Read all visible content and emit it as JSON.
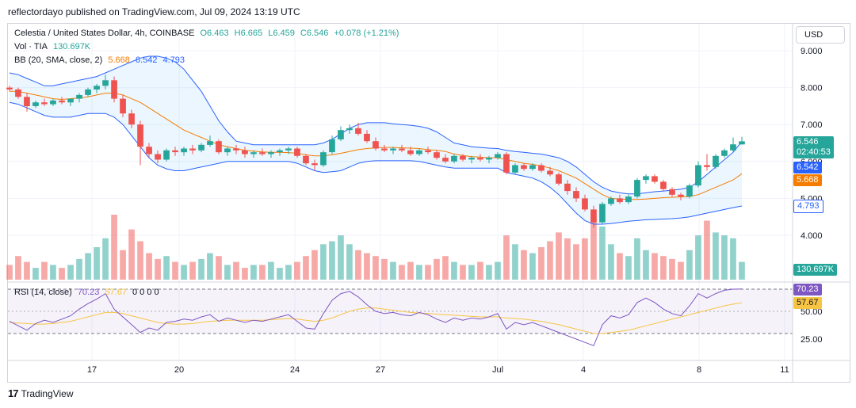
{
  "header": {
    "attribution": "reflectordayo published on TradingView.com, Jul 09, 2024 13:19 UTC"
  },
  "legend": {
    "symbol": "Celestia / United States Dollar, 4h, COINBASE",
    "open": "O6.463",
    "high": "H6.665",
    "low": "L6.459",
    "close": "C6.546",
    "change": "+0.078 (+1.21%)",
    "vol_label": "Vol · TIA",
    "vol_value": "130.697K",
    "bb_label": "BB (20, SMA, close, 2)",
    "bb_basis": "5.668",
    "bb_upper": "6.542",
    "bb_lower": "4.793",
    "rsi_label": "RSI (14, close)",
    "rsi_value": "70.23",
    "rsi_ma": "57.67",
    "rsi_extra": "0 0 0 0"
  },
  "currency_button": "USD",
  "badges": {
    "price": "6.546",
    "countdown": "02:40:53",
    "bb_upper": "6.542",
    "bb_basis": "5.668",
    "bb_lower": "4.793",
    "volume": "130.697K",
    "rsi": "70.23",
    "rsi_ma": "57.67"
  },
  "footer": {
    "logo_text": "TradingView",
    "logo_mark": "17"
  },
  "colors": {
    "up": "#26a69a",
    "down": "#ef5350",
    "bb_band": "#2962ff",
    "bb_basis": "#f57c00",
    "rsi_line": "#7e57c2",
    "rsi_ma": "#f7c543",
    "badge_blue": "#2962ff"
  },
  "chart_data": {
    "type": "candlestick",
    "price_axis": {
      "ticks": [
        "9.000",
        "8.000",
        "7.000",
        "6.000",
        "5.000",
        "4.000"
      ],
      "ylim": [
        3.7,
        9.2
      ]
    },
    "rsi_axis": {
      "ticks": [
        "70.23",
        "50.00",
        "25.00"
      ],
      "ylim": [
        15,
        80
      ],
      "bands": [
        70,
        30
      ]
    },
    "x_axis_labels": [
      "17",
      "20",
      "24",
      "27",
      "Jul",
      "4",
      "8",
      "11"
    ],
    "candles": [
      [
        8.0,
        8.05,
        7.9,
        7.95
      ],
      [
        7.95,
        8.0,
        7.7,
        7.75
      ],
      [
        7.75,
        7.85,
        7.35,
        7.5
      ],
      [
        7.5,
        7.65,
        7.45,
        7.6
      ],
      [
        7.6,
        7.7,
        7.5,
        7.55
      ],
      [
        7.55,
        7.7,
        7.5,
        7.65
      ],
      [
        7.65,
        7.75,
        7.55,
        7.6
      ],
      [
        7.6,
        7.7,
        7.5,
        7.7
      ],
      [
        7.7,
        7.85,
        7.6,
        7.8
      ],
      [
        7.8,
        8.0,
        7.75,
        7.95
      ],
      [
        7.95,
        8.1,
        7.85,
        8.05
      ],
      [
        8.05,
        8.35,
        7.95,
        8.2
      ],
      [
        8.2,
        8.3,
        7.6,
        7.7
      ],
      [
        7.7,
        7.8,
        7.2,
        7.3
      ],
      [
        7.3,
        7.4,
        6.9,
        7.0
      ],
      [
        7.0,
        7.1,
        5.9,
        6.4
      ],
      [
        6.4,
        6.5,
        6.1,
        6.2
      ],
      [
        6.2,
        6.3,
        5.95,
        6.05
      ],
      [
        6.05,
        6.35,
        6.0,
        6.3
      ],
      [
        6.3,
        6.4,
        6.15,
        6.25
      ],
      [
        6.25,
        6.4,
        6.15,
        6.35
      ],
      [
        6.35,
        6.45,
        6.2,
        6.3
      ],
      [
        6.3,
        6.5,
        6.25,
        6.45
      ],
      [
        6.45,
        6.7,
        6.4,
        6.55
      ],
      [
        6.55,
        6.6,
        6.2,
        6.25
      ],
      [
        6.25,
        6.4,
        6.15,
        6.35
      ],
      [
        6.35,
        6.45,
        6.2,
        6.3
      ],
      [
        6.3,
        6.4,
        6.1,
        6.2
      ],
      [
        6.2,
        6.3,
        6.1,
        6.25
      ],
      [
        6.25,
        6.35,
        6.15,
        6.2
      ],
      [
        6.2,
        6.3,
        6.1,
        6.25
      ],
      [
        6.25,
        6.35,
        6.15,
        6.3
      ],
      [
        6.3,
        6.4,
        6.2,
        6.35
      ],
      [
        6.35,
        6.4,
        6.1,
        6.15
      ],
      [
        6.15,
        6.2,
        5.9,
        5.95
      ],
      [
        5.95,
        6.05,
        5.75,
        5.9
      ],
      [
        5.9,
        6.3,
        5.85,
        6.25
      ],
      [
        6.25,
        6.7,
        6.2,
        6.6
      ],
      [
        6.6,
        6.95,
        6.55,
        6.85
      ],
      [
        6.85,
        7.0,
        6.75,
        6.9
      ],
      [
        6.9,
        7.05,
        6.7,
        6.75
      ],
      [
        6.75,
        6.85,
        6.5,
        6.55
      ],
      [
        6.55,
        6.65,
        6.3,
        6.35
      ],
      [
        6.35,
        6.45,
        6.25,
        6.3
      ],
      [
        6.3,
        6.4,
        6.2,
        6.35
      ],
      [
        6.35,
        6.45,
        6.25,
        6.3
      ],
      [
        6.3,
        6.4,
        6.15,
        6.2
      ],
      [
        6.2,
        6.35,
        6.15,
        6.3
      ],
      [
        6.3,
        6.4,
        6.2,
        6.25
      ],
      [
        6.25,
        6.3,
        6.05,
        6.1
      ],
      [
        6.1,
        6.2,
        5.95,
        6.0
      ],
      [
        6.0,
        6.2,
        5.95,
        6.15
      ],
      [
        6.15,
        6.2,
        6.0,
        6.05
      ],
      [
        6.05,
        6.15,
        5.95,
        6.1
      ],
      [
        6.1,
        6.2,
        6.0,
        6.05
      ],
      [
        6.05,
        6.15,
        5.95,
        6.1
      ],
      [
        6.1,
        6.25,
        6.05,
        6.2
      ],
      [
        6.2,
        6.25,
        5.65,
        5.7
      ],
      [
        5.7,
        5.95,
        5.65,
        5.9
      ],
      [
        5.9,
        5.95,
        5.75,
        5.8
      ],
      [
        5.8,
        5.95,
        5.75,
        5.9
      ],
      [
        5.9,
        5.95,
        5.7,
        5.75
      ],
      [
        5.75,
        5.85,
        5.6,
        5.65
      ],
      [
        5.65,
        5.7,
        5.35,
        5.4
      ],
      [
        5.4,
        5.5,
        5.1,
        5.2
      ],
      [
        5.2,
        5.3,
        4.9,
        5.0
      ],
      [
        5.0,
        5.1,
        4.65,
        4.7
      ],
      [
        4.7,
        4.8,
        4.2,
        4.35
      ],
      [
        4.35,
        4.9,
        4.3,
        4.85
      ],
      [
        4.85,
        5.05,
        4.8,
        5.0
      ],
      [
        5.0,
        5.1,
        4.85,
        4.9
      ],
      [
        4.9,
        5.1,
        4.85,
        5.05
      ],
      [
        5.05,
        5.55,
        5.0,
        5.5
      ],
      [
        5.5,
        5.65,
        5.4,
        5.6
      ],
      [
        5.6,
        5.65,
        5.4,
        5.45
      ],
      [
        5.45,
        5.5,
        5.2,
        5.25
      ],
      [
        5.25,
        5.3,
        5.05,
        5.1
      ],
      [
        5.1,
        5.15,
        4.95,
        5.05
      ],
      [
        5.05,
        5.4,
        5.0,
        5.35
      ],
      [
        5.35,
        6.0,
        5.3,
        5.9
      ],
      [
        5.9,
        6.2,
        5.75,
        5.85
      ],
      [
        5.85,
        6.2,
        5.8,
        6.15
      ],
      [
        6.15,
        6.35,
        6.1,
        6.3
      ],
      [
        6.3,
        6.65,
        6.25,
        6.463
      ],
      [
        6.463,
        6.665,
        6.459,
        6.546
      ]
    ],
    "volumes": [
      0.5,
      0.8,
      0.6,
      0.4,
      0.6,
      0.5,
      0.4,
      0.5,
      0.7,
      0.9,
      1.1,
      1.4,
      2.2,
      1.0,
      1.7,
      1.3,
      0.9,
      0.7,
      0.8,
      0.6,
      0.5,
      0.6,
      0.7,
      0.9,
      0.8,
      0.5,
      0.6,
      0.4,
      0.5,
      0.5,
      0.6,
      0.4,
      0.5,
      0.6,
      0.8,
      1.0,
      1.2,
      1.3,
      1.5,
      1.2,
      1.0,
      0.9,
      0.8,
      0.7,
      0.6,
      0.5,
      0.6,
      0.5,
      0.5,
      0.7,
      0.8,
      0.6,
      0.5,
      0.5,
      0.6,
      0.5,
      0.6,
      1.5,
      1.2,
      1.0,
      0.9,
      1.1,
      1.3,
      1.6,
      1.4,
      1.2,
      1.4,
      2.0,
      1.8,
      1.2,
      0.9,
      0.8,
      1.4,
      1.0,
      0.9,
      0.8,
      0.7,
      0.6,
      1.0,
      1.5,
      2.0,
      1.6,
      1.5,
      1.4,
      0.6
    ],
    "upper_band": [
      8.4,
      8.35,
      8.25,
      8.15,
      8.05,
      8.05,
      8.1,
      8.15,
      8.2,
      8.25,
      8.3,
      8.4,
      8.5,
      8.6,
      8.7,
      8.8,
      8.85,
      8.85,
      8.8,
      8.7,
      8.5,
      8.2,
      7.9,
      7.5,
      7.1,
      6.8,
      6.55,
      6.5,
      6.45,
      6.45,
      6.45,
      6.45,
      6.45,
      6.45,
      6.45,
      6.45,
      6.5,
      6.6,
      6.75,
      6.9,
      7.0,
      7.05,
      7.05,
      7.05,
      7.02,
      7.0,
      6.98,
      6.95,
      6.9,
      6.8,
      6.65,
      6.5,
      6.45,
      6.4,
      6.38,
      6.36,
      6.35,
      6.3,
      6.27,
      6.25,
      6.22,
      6.2,
      6.15,
      6.1,
      6.0,
      5.85,
      5.65,
      5.45,
      5.3,
      5.2,
      5.15,
      5.12,
      5.12,
      5.15,
      5.18,
      5.2,
      5.22,
      5.25,
      5.3,
      5.45,
      5.65,
      5.85,
      6.05,
      6.25,
      6.542
    ],
    "lower_band": [
      7.6,
      7.55,
      7.45,
      7.35,
      7.25,
      7.2,
      7.2,
      7.2,
      7.25,
      7.3,
      7.3,
      7.3,
      7.2,
      7.0,
      6.7,
      6.4,
      6.1,
      5.9,
      5.8,
      5.75,
      5.75,
      5.8,
      5.85,
      5.9,
      5.95,
      6.0,
      6.0,
      6.0,
      6.0,
      6.0,
      6.0,
      6.0,
      6.0,
      5.95,
      5.85,
      5.75,
      5.7,
      5.72,
      5.75,
      5.85,
      5.95,
      6.0,
      6.02,
      6.02,
      6.02,
      6.02,
      6.02,
      6.0,
      5.95,
      5.9,
      5.85,
      5.82,
      5.82,
      5.82,
      5.82,
      5.82,
      5.82,
      5.7,
      5.65,
      5.6,
      5.55,
      5.45,
      5.3,
      5.1,
      4.85,
      4.6,
      4.4,
      4.3,
      4.3,
      4.32,
      4.35,
      4.38,
      4.4,
      4.42,
      4.43,
      4.44,
      4.45,
      4.47,
      4.5,
      4.55,
      4.6,
      4.65,
      4.7,
      4.75,
      4.793
    ],
    "basis": [
      7.9,
      7.9,
      7.85,
      7.8,
      7.75,
      7.7,
      7.68,
      7.7,
      7.72,
      7.75,
      7.8,
      7.85,
      7.85,
      7.8,
      7.7,
      7.6,
      7.45,
      7.3,
      7.15,
      7.0,
      6.85,
      6.75,
      6.65,
      6.55,
      6.45,
      6.4,
      6.35,
      6.3,
      6.28,
      6.26,
      6.25,
      6.25,
      6.24,
      6.22,
      6.18,
      6.15,
      6.15,
      6.18,
      6.22,
      6.27,
      6.32,
      6.35,
      6.37,
      6.38,
      6.38,
      6.37,
      6.36,
      6.35,
      6.32,
      6.3,
      6.27,
      6.2,
      6.16,
      6.13,
      6.12,
      6.1,
      6.1,
      6.05,
      6.0,
      5.95,
      5.92,
      5.88,
      5.82,
      5.75,
      5.65,
      5.55,
      5.4,
      5.25,
      5.1,
      5.0,
      4.98,
      4.97,
      4.97,
      4.98,
      5.0,
      5.02,
      5.03,
      5.04,
      5.05,
      5.1,
      5.2,
      5.3,
      5.4,
      5.5,
      5.668
    ],
    "rsi": [
      41,
      37,
      33,
      39,
      42,
      40,
      43,
      46,
      52,
      57,
      61,
      66,
      52,
      45,
      38,
      31,
      35,
      33,
      40,
      41,
      43,
      42,
      45,
      47,
      41,
      44,
      42,
      40,
      42,
      41,
      43,
      45,
      47,
      41,
      35,
      34,
      48,
      60,
      66,
      68,
      63,
      56,
      50,
      48,
      49,
      47,
      46,
      49,
      47,
      43,
      40,
      44,
      42,
      44,
      43,
      45,
      48,
      34,
      40,
      38,
      40,
      37,
      34,
      31,
      28,
      25,
      22,
      19,
      38,
      46,
      44,
      47,
      58,
      62,
      58,
      52,
      48,
      46,
      55,
      66,
      62,
      66,
      69,
      70,
      70.23
    ],
    "rsi_ma": [
      40,
      39.5,
      39,
      38.5,
      38.5,
      39,
      40,
      41,
      43,
      45,
      47,
      49,
      49,
      48,
      46,
      44,
      42,
      40,
      39,
      38.5,
      38.5,
      39,
      40,
      41,
      41.5,
      42,
      42,
      42,
      42,
      42,
      42.5,
      43,
      43.5,
      43,
      42,
      41,
      42,
      44,
      47,
      50,
      52,
      53,
      53,
      52,
      51,
      50,
      49,
      48.5,
      48,
      47.5,
      47,
      46.5,
      46,
      45.5,
      45,
      45,
      45,
      44,
      43.5,
      43,
      42,
      41,
      39.5,
      38,
      36,
      34,
      32,
      30,
      30,
      31,
      32,
      33,
      35,
      37,
      39,
      41,
      43,
      45,
      47,
      49,
      51,
      53,
      55,
      56.5,
      57.67
    ]
  }
}
